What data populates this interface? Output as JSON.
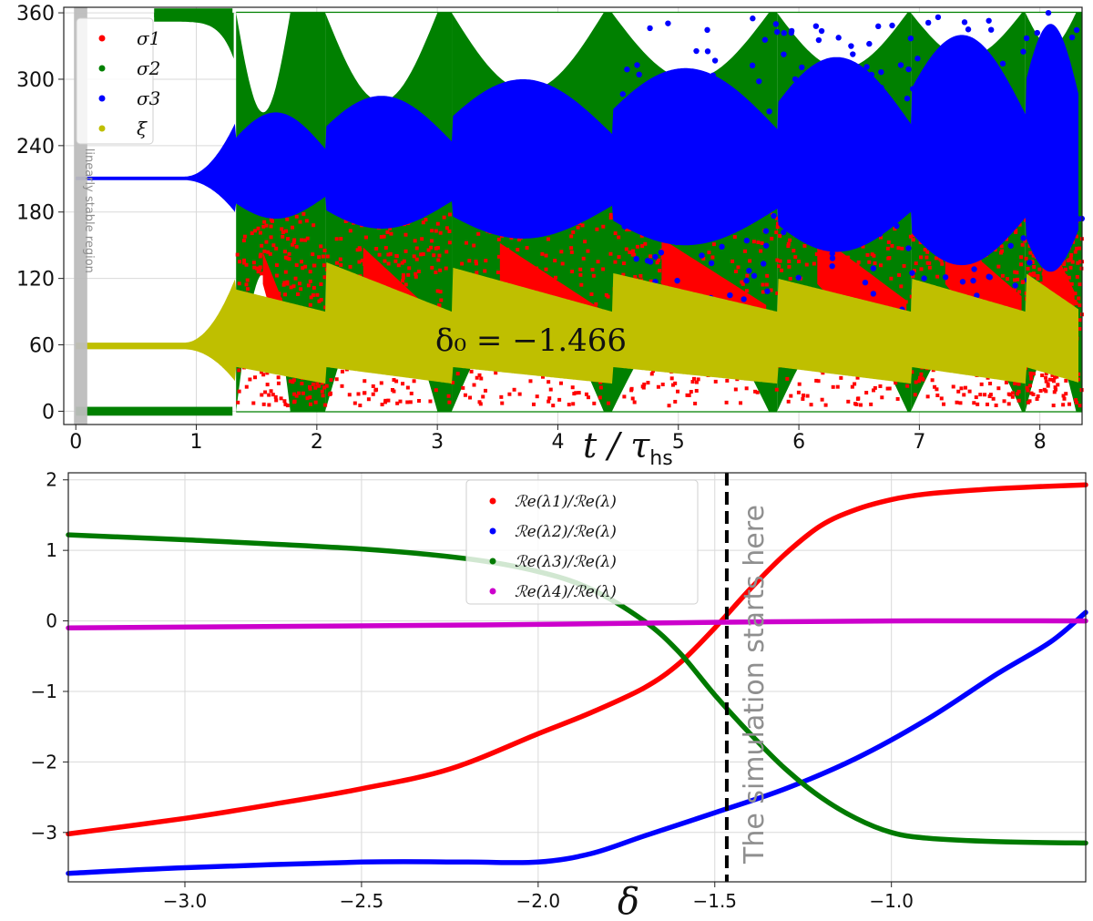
{
  "chart_data": [
    {
      "type": "scatter",
      "title": "",
      "xlabel": "t / τ_hs",
      "xlabel_main": "t / τ",
      "xlabel_sub": "hs",
      "ylabel": "",
      "xlim": [
        -0.1,
        8.35
      ],
      "ylim": [
        -12,
        365
      ],
      "xticks": [
        0,
        1,
        2,
        3,
        4,
        5,
        6,
        7,
        8
      ],
      "yticks": [
        0,
        60,
        120,
        180,
        240,
        300,
        360
      ],
      "grid": true,
      "legend_placement": "top-left",
      "annotation": "δ₀ = −1.466",
      "band_label": "linearly stable region",
      "band_range": [
        0,
        0.08
      ],
      "cycles": [
        {
          "start": 0.08,
          "end": 1.33,
          "growth_to": 1.33
        },
        {
          "start": 1.33,
          "end": 2.07,
          "growth_to": 1.78
        },
        {
          "start": 2.07,
          "end": 3.12,
          "growth_to": 3.0
        },
        {
          "start": 3.12,
          "end": 4.45,
          "growth_to": 4.38
        },
        {
          "start": 4.45,
          "end": 5.82,
          "growth_to": 5.75
        },
        {
          "start": 5.82,
          "end": 6.93,
          "growth_to": 6.9
        },
        {
          "start": 6.93,
          "end": 7.88,
          "growth_to": 7.85
        },
        {
          "start": 7.88,
          "end": 8.35,
          "growth_to": 8.3
        }
      ],
      "series": [
        {
          "name": "σ1",
          "color": "#ff0000",
          "center": 60,
          "envelope_max": [
            0,
            60,
            120,
            150,
            160,
            170,
            180,
            180,
            180
          ]
        },
        {
          "name": "σ2",
          "color": "#008000",
          "center": 0,
          "envelope_max": [
            0,
            360,
            360,
            360,
            360,
            360,
            360,
            360,
            360
          ]
        },
        {
          "name": "σ3",
          "color": "#0000ff",
          "center": 210,
          "envelope_max": [
            0,
            60,
            75,
            90,
            100,
            110,
            130,
            140,
            150
          ]
        },
        {
          "name": "ξ",
          "color": "#bfbf00",
          "center": 60,
          "envelope_max": [
            0,
            65,
            75,
            70,
            70,
            70,
            75,
            90,
            300
          ]
        }
      ]
    },
    {
      "type": "line",
      "title": "",
      "xlabel": "δ",
      "ylabel": "",
      "xlim": [
        -3.33,
        -0.45
      ],
      "ylim": [
        -3.7,
        2.1
      ],
      "xticks": [
        -3.0,
        -2.5,
        -2.0,
        -1.5,
        -1.0
      ],
      "xtick_labels": [
        "−3.0",
        "−2.5",
        "−2.0",
        "−1.5",
        "−1.0"
      ],
      "yticks": [
        -3,
        -2,
        -1,
        0,
        1,
        2
      ],
      "ytick_labels": [
        "−3",
        "−2",
        "−1",
        "0",
        "1",
        "2"
      ],
      "grid": true,
      "legend_placement": "top-center",
      "vline": {
        "x": -1.466,
        "label": "The simulation starts here"
      },
      "series": [
        {
          "name": "ℛe(λ1)/ℛe(λ)",
          "color": "#ff0000",
          "x": [
            -3.33,
            -3.0,
            -2.75,
            -2.5,
            -2.25,
            -2.0,
            -1.85,
            -1.7,
            -1.6,
            -1.5,
            -1.4,
            -1.3,
            -1.2,
            -1.1,
            -1.0,
            -0.9,
            -0.75,
            -0.6,
            -0.45
          ],
          "y": [
            -3.02,
            -2.8,
            -2.6,
            -2.38,
            -2.1,
            -1.6,
            -1.3,
            -0.95,
            -0.6,
            -0.1,
            0.45,
            0.95,
            1.35,
            1.58,
            1.72,
            1.8,
            1.86,
            1.9,
            1.93
          ]
        },
        {
          "name": "ℛe(λ2)/ℛe(λ)",
          "color": "#0000ff",
          "x": [
            -3.33,
            -3.0,
            -2.5,
            -2.2,
            -2.0,
            -1.85,
            -1.7,
            -1.5,
            -1.3,
            -1.1,
            -0.9,
            -0.7,
            -0.55,
            -0.45
          ],
          "y": [
            -3.58,
            -3.5,
            -3.42,
            -3.42,
            -3.42,
            -3.3,
            -3.05,
            -2.72,
            -2.38,
            -1.95,
            -1.4,
            -0.75,
            -0.3,
            0.12
          ]
        },
        {
          "name": "ℛe(λ3)/ℛe(λ)",
          "color": "#007a00",
          "x": [
            -3.33,
            -3.0,
            -2.5,
            -2.2,
            -2.0,
            -1.85,
            -1.7,
            -1.6,
            -1.5,
            -1.4,
            -1.3,
            -1.2,
            -1.1,
            -1.0,
            -0.9,
            -0.7,
            -0.45
          ],
          "y": [
            1.22,
            1.15,
            1.02,
            0.88,
            0.7,
            0.45,
            0.0,
            -0.45,
            -1.05,
            -1.6,
            -2.1,
            -2.5,
            -2.8,
            -3.0,
            -3.08,
            -3.13,
            -3.15
          ]
        },
        {
          "name": "ℛe(λ4)/ℛe(λ)",
          "color": "#cc00cc",
          "x": [
            -3.33,
            -2.5,
            -2.0,
            -1.5,
            -1.0,
            -0.45
          ],
          "y": [
            -0.1,
            -0.07,
            -0.05,
            -0.02,
            0.0,
            0.0
          ]
        }
      ]
    }
  ]
}
